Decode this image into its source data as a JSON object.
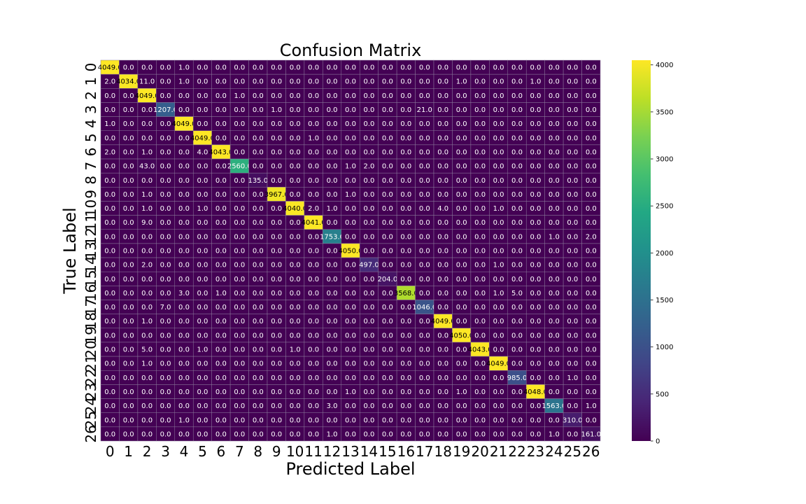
{
  "chart_data": {
    "type": "heatmap",
    "title": "Confusion Matrix",
    "xlabel": "Predicted Label",
    "ylabel": "True Label",
    "x_categories": [
      "0",
      "1",
      "2",
      "3",
      "4",
      "5",
      "6",
      "7",
      "8",
      "9",
      "10",
      "11",
      "12",
      "13",
      "14",
      "15",
      "16",
      "17",
      "18",
      "19",
      "20",
      "21",
      "22",
      "23",
      "24",
      "25",
      "26"
    ],
    "y_categories": [
      "0",
      "1",
      "2",
      "3",
      "4",
      "5",
      "6",
      "7",
      "8",
      "9",
      "10",
      "11",
      "12",
      "13",
      "14",
      "15",
      "16",
      "17",
      "18",
      "19",
      "20",
      "21",
      "22",
      "23",
      "24",
      "25",
      "26"
    ],
    "colormap": "viridis",
    "colorbar": {
      "min": 0,
      "max": 4050,
      "ticks": [
        0,
        500,
        1000,
        1500,
        2000,
        2500,
        3000,
        3500,
        4000
      ]
    },
    "cell_format": "0.0",
    "values": [
      [
        4049,
        0,
        0,
        0,
        1,
        0,
        0,
        0,
        0,
        0,
        0,
        0,
        0,
        0,
        0,
        0,
        0,
        0,
        0,
        0,
        0,
        0,
        0,
        0,
        0,
        0,
        0
      ],
      [
        2,
        4034,
        11,
        0,
        1,
        0,
        0,
        0,
        0,
        0,
        0,
        0,
        0,
        0,
        0,
        0,
        0,
        0,
        0,
        1,
        0,
        0,
        0,
        1,
        0,
        0,
        0
      ],
      [
        0,
        0,
        4049,
        0,
        0,
        0,
        0,
        1,
        0,
        0,
        0,
        0,
        0,
        0,
        0,
        0,
        0,
        0,
        0,
        0,
        0,
        0,
        0,
        0,
        0,
        0,
        0
      ],
      [
        0,
        0,
        0,
        1207,
        0,
        0,
        0,
        0,
        0,
        1,
        0,
        0,
        0,
        0,
        0,
        0,
        0,
        21,
        0,
        0,
        0,
        0,
        0,
        0,
        0,
        0,
        0
      ],
      [
        1,
        0,
        0,
        0,
        4049,
        0,
        0,
        0,
        0,
        0,
        0,
        0,
        0,
        0,
        0,
        0,
        0,
        0,
        0,
        0,
        0,
        0,
        0,
        0,
        0,
        0,
        0
      ],
      [
        0,
        0,
        0,
        0,
        0,
        4049,
        0,
        0,
        0,
        0,
        0,
        1,
        0,
        0,
        0,
        0,
        0,
        0,
        0,
        0,
        0,
        0,
        0,
        0,
        0,
        0,
        0
      ],
      [
        2,
        0,
        1,
        0,
        0,
        4,
        4043,
        0,
        0,
        0,
        0,
        0,
        0,
        0,
        0,
        0,
        0,
        0,
        0,
        0,
        0,
        0,
        0,
        0,
        0,
        0,
        0
      ],
      [
        0,
        0,
        43,
        0,
        0,
        0,
        0,
        2560,
        0,
        0,
        0,
        0,
        0,
        1,
        2,
        0,
        0,
        0,
        0,
        0,
        0,
        0,
        0,
        0,
        0,
        0,
        0
      ],
      [
        0,
        0,
        0,
        0,
        0,
        0,
        0,
        0,
        135,
        0,
        0,
        0,
        0,
        0,
        0,
        0,
        0,
        0,
        0,
        0,
        0,
        0,
        0,
        0,
        0,
        0,
        0
      ],
      [
        0,
        0,
        1,
        0,
        0,
        0,
        0,
        0,
        0,
        3967,
        0,
        0,
        0,
        1,
        0,
        0,
        0,
        0,
        0,
        0,
        0,
        0,
        0,
        0,
        0,
        0,
        0
      ],
      [
        0,
        0,
        1,
        0,
        0,
        1,
        0,
        0,
        0,
        0,
        4040,
        2,
        1,
        0,
        0,
        0,
        0,
        0,
        4,
        0,
        0,
        1,
        0,
        0,
        0,
        0,
        0
      ],
      [
        0,
        0,
        9,
        0,
        0,
        0,
        0,
        0,
        0,
        0,
        0,
        4041,
        0,
        0,
        0,
        0,
        0,
        0,
        0,
        0,
        0,
        0,
        0,
        0,
        0,
        0,
        0
      ],
      [
        0,
        0,
        0,
        0,
        0,
        0,
        0,
        0,
        0,
        0,
        0,
        0,
        1753,
        0,
        0,
        0,
        0,
        0,
        0,
        0,
        0,
        0,
        0,
        0,
        1,
        0,
        2
      ],
      [
        0,
        0,
        0,
        0,
        0,
        0,
        0,
        0,
        0,
        0,
        0,
        0,
        0,
        4050,
        0,
        0,
        0,
        0,
        0,
        0,
        0,
        0,
        0,
        0,
        0,
        0,
        0
      ],
      [
        0,
        0,
        2,
        0,
        0,
        0,
        0,
        0,
        0,
        0,
        0,
        0,
        0,
        0,
        497,
        0,
        0,
        0,
        0,
        0,
        0,
        1,
        0,
        0,
        0,
        0,
        0
      ],
      [
        0,
        0,
        0,
        0,
        0,
        0,
        0,
        0,
        0,
        0,
        0,
        0,
        0,
        0,
        0,
        204,
        0,
        0,
        0,
        0,
        0,
        0,
        0,
        0,
        0,
        0,
        0
      ],
      [
        0,
        0,
        0,
        0,
        3,
        0,
        1,
        0,
        0,
        0,
        0,
        0,
        0,
        0,
        0,
        0,
        3568,
        0,
        0,
        0,
        0,
        1,
        5,
        0,
        0,
        0,
        0
      ],
      [
        0,
        0,
        0,
        7,
        0,
        0,
        0,
        0,
        0,
        0,
        0,
        0,
        0,
        0,
        0,
        0,
        0,
        1046,
        0,
        0,
        0,
        0,
        0,
        0,
        0,
        0,
        0
      ],
      [
        0,
        0,
        1,
        0,
        0,
        0,
        0,
        0,
        0,
        0,
        0,
        0,
        0,
        0,
        0,
        0,
        0,
        0,
        4049,
        0,
        0,
        0,
        0,
        0,
        0,
        0,
        0
      ],
      [
        0,
        0,
        0,
        0,
        0,
        0,
        0,
        0,
        0,
        0,
        0,
        0,
        0,
        0,
        0,
        0,
        0,
        0,
        0,
        4050,
        0,
        0,
        0,
        0,
        0,
        0,
        0
      ],
      [
        0,
        0,
        5,
        0,
        0,
        1,
        0,
        0,
        0,
        0,
        1,
        0,
        0,
        0,
        0,
        0,
        0,
        0,
        0,
        0,
        4043,
        0,
        0,
        0,
        0,
        0,
        0
      ],
      [
        0,
        0,
        1,
        0,
        0,
        0,
        0,
        0,
        0,
        0,
        0,
        0,
        0,
        0,
        0,
        0,
        0,
        0,
        0,
        0,
        0,
        4049,
        0,
        0,
        0,
        0,
        0
      ],
      [
        0,
        0,
        0,
        0,
        0,
        0,
        0,
        0,
        0,
        0,
        0,
        0,
        0,
        0,
        0,
        0,
        0,
        0,
        0,
        0,
        0,
        0,
        985,
        0,
        0,
        1,
        0
      ],
      [
        0,
        0,
        0,
        0,
        0,
        0,
        0,
        0,
        0,
        0,
        0,
        0,
        0,
        1,
        0,
        0,
        0,
        0,
        0,
        1,
        0,
        0,
        0,
        4048,
        0,
        0,
        0
      ],
      [
        0,
        0,
        0,
        0,
        0,
        0,
        0,
        0,
        0,
        0,
        0,
        0,
        3,
        0,
        0,
        0,
        0,
        0,
        0,
        0,
        0,
        0,
        0,
        0,
        1563,
        0,
        1
      ],
      [
        0,
        0,
        0,
        0,
        1,
        0,
        0,
        0,
        0,
        0,
        0,
        0,
        0,
        0,
        0,
        0,
        0,
        0,
        0,
        0,
        0,
        0,
        0,
        0,
        0,
        310,
        0
      ],
      [
        0,
        0,
        0,
        0,
        0,
        0,
        0,
        0,
        0,
        0,
        0,
        0,
        1,
        0,
        0,
        0,
        0,
        0,
        0,
        0,
        0,
        0,
        0,
        0,
        1,
        0,
        161
      ]
    ]
  }
}
